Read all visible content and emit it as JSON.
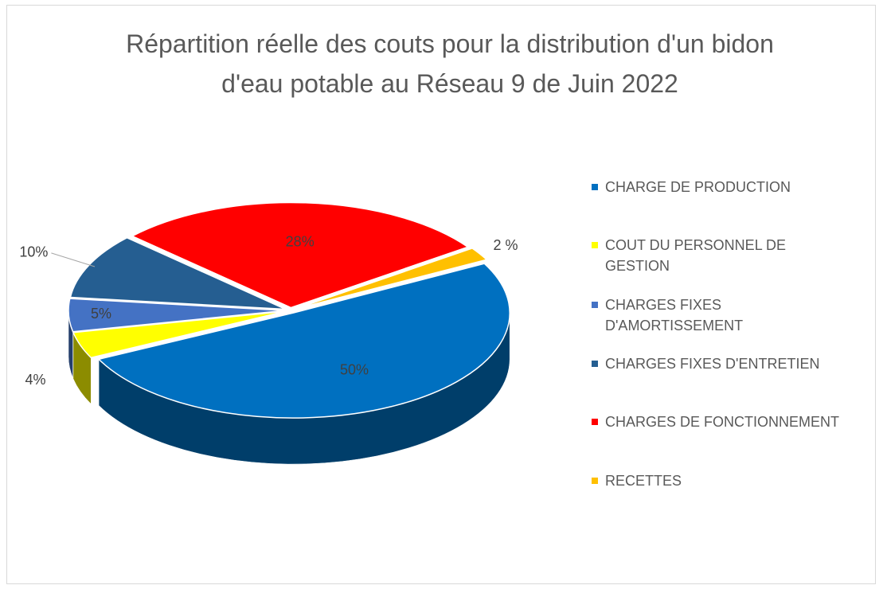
{
  "chart_data": {
    "type": "pie3d",
    "title": "Répartition réelle des couts pour la distribution d'un bidon d'eau potable au Réseau 9  de Juin 2022",
    "categories": [
      "CHARGE DE PRODUCTION",
      "COUT DU PERSONNEL DE GESTION",
      "CHARGES FIXES D'AMORTISSEMENT",
      "CHARGES FIXES D'ENTRETIEN",
      "CHARGES DE FONCTIONNEMENT",
      "RECETTES"
    ],
    "values": [
      50,
      4,
      5,
      10,
      28,
      2
    ],
    "value_labels": [
      "50%",
      "4%",
      "5%",
      "10%",
      "28%",
      "2 %"
    ],
    "colors": [
      "#0070c0",
      "#ffff00",
      "#4472c4",
      "#255e91",
      "#ff0000",
      "#ffc000"
    ],
    "legend": "right"
  }
}
